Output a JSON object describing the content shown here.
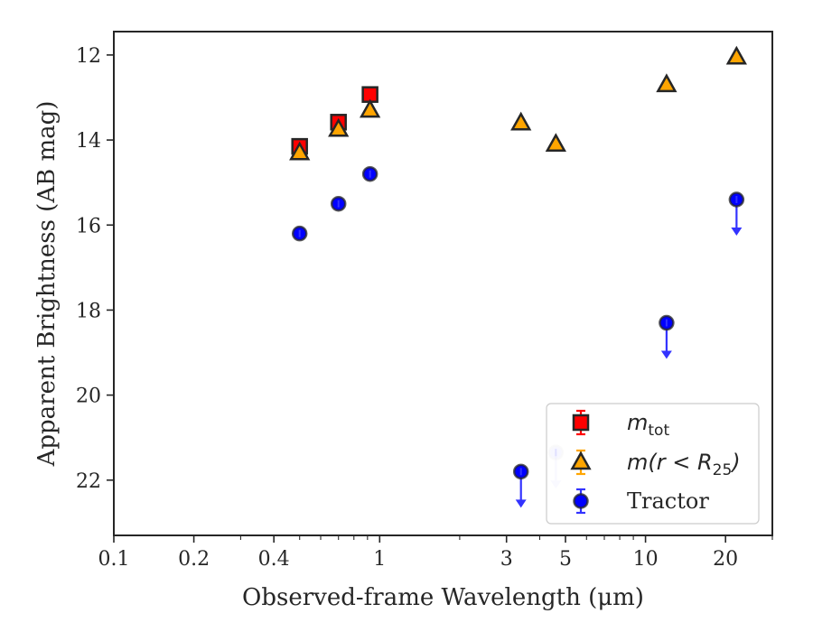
{
  "chart_data": {
    "type": "scatter",
    "title": "",
    "xlabel": "Observed-frame Wavelength (μm)",
    "ylabel": "Apparent Brightness (AB mag)",
    "xscale": "log",
    "xlim": [
      0.1,
      30
    ],
    "ylim": [
      23.3,
      11.45
    ],
    "y_inverted": true,
    "x_ticks": [
      0.1,
      0.2,
      0.4,
      1,
      3,
      5,
      10,
      20
    ],
    "x_tick_labels": [
      "0.1",
      "0.2",
      "0.4",
      "1",
      "3",
      "5",
      "10",
      "20"
    ],
    "y_ticks": [
      12,
      14,
      16,
      18,
      20,
      22
    ],
    "y_tick_labels": [
      "12",
      "14",
      "16",
      "18",
      "20",
      "22"
    ],
    "grid": false,
    "legend_position": "bottom-right",
    "series": [
      {
        "name": "m_tot",
        "legend_label": {
          "main": "m",
          "sub": "tot"
        },
        "marker": "square",
        "color": "#ff0000",
        "edge_color": "#262626",
        "points": [
          {
            "x": 0.5,
            "y": 14.15
          },
          {
            "x": 0.7,
            "y": 13.58
          },
          {
            "x": 0.92,
            "y": 12.93
          }
        ]
      },
      {
        "name": "m(r < R_25)",
        "legend_label": {
          "main": "m(r < R",
          "sub": "25",
          "close": ")"
        },
        "marker": "triangle",
        "color": "#ffa500",
        "edge_color": "#262626",
        "points": [
          {
            "x": 0.5,
            "y": 14.3
          },
          {
            "x": 0.7,
            "y": 13.75
          },
          {
            "x": 0.92,
            "y": 13.3
          },
          {
            "x": 3.4,
            "y": 13.6
          },
          {
            "x": 4.6,
            "y": 14.1
          },
          {
            "x": 12.0,
            "y": 12.7
          },
          {
            "x": 22.0,
            "y": 12.05
          }
        ]
      },
      {
        "name": "Tractor",
        "legend_label": {
          "main": "Tractor"
        },
        "marker": "circle",
        "color": "#0000ff",
        "edge_color": "#262626",
        "points": [
          {
            "x": 0.5,
            "y": 16.2
          },
          {
            "x": 0.7,
            "y": 15.5
          },
          {
            "x": 0.92,
            "y": 14.8
          },
          {
            "x": 3.4,
            "y": 21.8,
            "upper_limit": true
          },
          {
            "x": 4.6,
            "y": 21.35,
            "upper_limit": true,
            "faded": true
          },
          {
            "x": 12.0,
            "y": 18.3,
            "upper_limit": true
          },
          {
            "x": 22.0,
            "y": 15.4,
            "upper_limit": true
          }
        ]
      }
    ]
  }
}
